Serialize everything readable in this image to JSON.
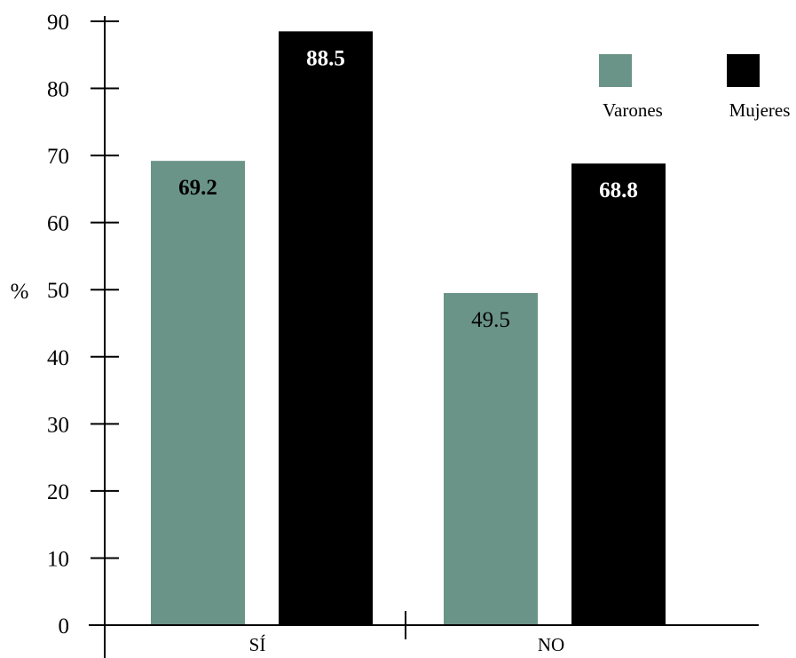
{
  "chart_data": {
    "type": "bar",
    "title": "",
    "xlabel": "",
    "ylabel": "%",
    "ylim": [
      0,
      90
    ],
    "yticks": [
      0,
      10,
      20,
      30,
      40,
      50,
      60,
      70,
      80,
      90
    ],
    "categories": [
      "SÍ",
      "NO"
    ],
    "series": [
      {
        "name": "Varones",
        "color": "#6b9488",
        "label_color": "#000000",
        "values": [
          69.2,
          49.5
        ],
        "labels": [
          "69.2",
          "49.5"
        ],
        "label_bold": [
          true,
          false
        ]
      },
      {
        "name": "Mujeres",
        "color": "#000000",
        "label_color": "#ffffff",
        "values": [
          88.5,
          68.8
        ],
        "labels": [
          "88.5",
          "68.8"
        ],
        "label_bold": [
          true,
          true
        ]
      }
    ],
    "legend_position": "top-right",
    "grid": false
  }
}
